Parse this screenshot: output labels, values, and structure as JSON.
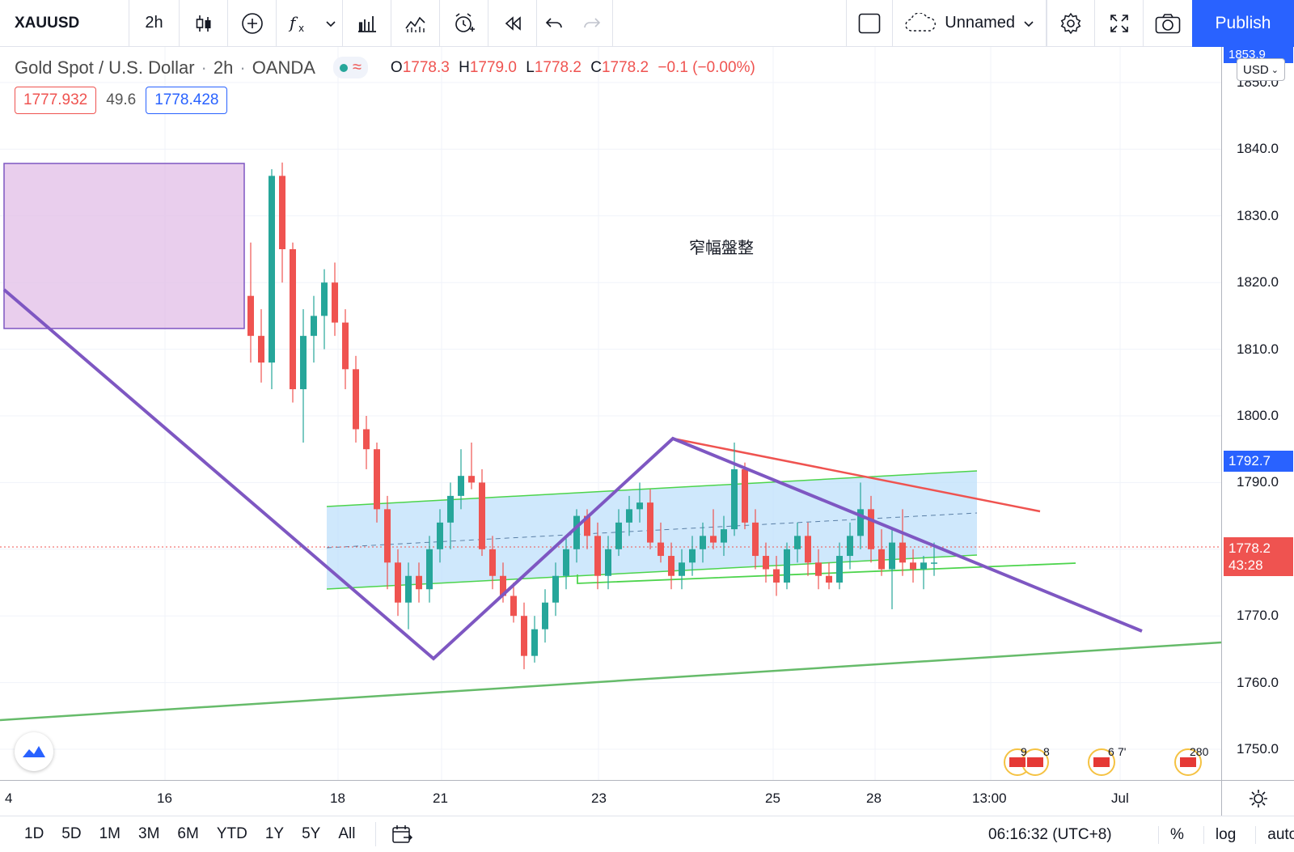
{
  "toolbar": {
    "symbol": "XAUUSD",
    "interval": "2h",
    "layout_name": "Unnamed",
    "publish_label": "Publish",
    "icons": [
      "candles-icon",
      "add-indicator-icon",
      "fx-icon",
      "chevron-down-icon",
      "bar-chart-icon",
      "compare-icon",
      "alert-icon",
      "replay-icon",
      "undo-icon",
      "redo-icon",
      "layout-icon",
      "settings-icon",
      "fullscreen-icon",
      "camera-icon"
    ]
  },
  "legend": {
    "title": "Gold Spot / U.S. Dollar",
    "interval": "2h",
    "source": "OANDA",
    "wave": "≈",
    "open_label": "O",
    "open": "1778.3",
    "high_label": "H",
    "high": "1779.0",
    "low_label": "L",
    "low": "1778.2",
    "close_label": "C",
    "close": "1778.2",
    "change": "−0.1 (−0.00%)",
    "bid": "1777.932",
    "spread": "49.6",
    "ask": "1778.428"
  },
  "annotation": "窄幅盤整",
  "price_scale": {
    "currency": "USD",
    "ticks": [
      "1850.0",
      "1840.0",
      "1830.0",
      "1820.0",
      "1810.0",
      "1800.0",
      "1790.0",
      "1780.0",
      "1770.0",
      "1760.0",
      "1750.0"
    ],
    "top_tag": "1853.9",
    "line_tag": "1792.7",
    "last_price": "1778.2",
    "countdown": "43:28",
    "colors": {
      "top_tag": "#2962ff",
      "line_tag": "#2962ff",
      "last_price": "#ef5350"
    }
  },
  "time_axis": {
    "labels": [
      "4",
      "16",
      "18",
      "21",
      "23",
      "25",
      "28",
      "13:00",
      "Jul"
    ]
  },
  "bottom_bar": {
    "ranges": [
      "1D",
      "5D",
      "1M",
      "3M",
      "6M",
      "YTD",
      "1Y",
      "5Y",
      "All"
    ],
    "clock": "06:16:32 (UTC+8)",
    "percent": "%",
    "log": "log",
    "auto": "auto"
  },
  "events": [
    "9",
    "8",
    "6",
    "7'",
    "280"
  ],
  "chart_data": {
    "type": "candlestick",
    "symbol": "XAUUSD",
    "ylim": [
      1745,
      1855
    ],
    "candles": [
      [
        1818,
        1826,
        1808,
        1812
      ],
      [
        1812,
        1816,
        1805,
        1808
      ],
      [
        1808,
        1837,
        1804,
        1836
      ],
      [
        1836,
        1838,
        1820,
        1825
      ],
      [
        1825,
        1826,
        1802,
        1804
      ],
      [
        1804,
        1816,
        1796,
        1812
      ],
      [
        1812,
        1818,
        1808,
        1815
      ],
      [
        1815,
        1822,
        1810,
        1820
      ],
      [
        1820,
        1823,
        1812,
        1814
      ],
      [
        1814,
        1816,
        1804,
        1807
      ],
      [
        1807,
        1809,
        1796,
        1798
      ],
      [
        1798,
        1800,
        1792,
        1795
      ],
      [
        1795,
        1796,
        1784,
        1786
      ],
      [
        1786,
        1788,
        1774,
        1778
      ],
      [
        1778,
        1780,
        1770,
        1772
      ],
      [
        1772,
        1778,
        1768,
        1776
      ],
      [
        1776,
        1778,
        1772,
        1774
      ],
      [
        1774,
        1782,
        1772,
        1780
      ],
      [
        1780,
        1786,
        1778,
        1784
      ],
      [
        1784,
        1790,
        1780,
        1788
      ],
      [
        1788,
        1795,
        1786,
        1791
      ],
      [
        1791,
        1796,
        1789,
        1790
      ],
      [
        1790,
        1792,
        1779,
        1780
      ],
      [
        1780,
        1782,
        1774,
        1776
      ],
      [
        1776,
        1778,
        1772,
        1773
      ],
      [
        1773,
        1775,
        1769,
        1770
      ],
      [
        1770,
        1772,
        1762,
        1764
      ],
      [
        1764,
        1770,
        1763,
        1768
      ],
      [
        1768,
        1774,
        1766,
        1772
      ],
      [
        1772,
        1778,
        1770,
        1776
      ],
      [
        1776,
        1782,
        1774,
        1780
      ],
      [
        1780,
        1786,
        1778,
        1785
      ],
      [
        1785,
        1786,
        1780,
        1782
      ],
      [
        1782,
        1784,
        1774,
        1776
      ],
      [
        1776,
        1782,
        1774,
        1780
      ],
      [
        1780,
        1786,
        1779,
        1784
      ],
      [
        1784,
        1788,
        1782,
        1786
      ],
      [
        1786,
        1790,
        1784,
        1787
      ],
      [
        1787,
        1789,
        1780,
        1781
      ],
      [
        1781,
        1784,
        1778,
        1779
      ],
      [
        1779,
        1781,
        1774,
        1776
      ],
      [
        1776,
        1780,
        1774,
        1778
      ],
      [
        1778,
        1782,
        1776,
        1780
      ],
      [
        1780,
        1784,
        1778,
        1782
      ],
      [
        1782,
        1786,
        1780,
        1781
      ],
      [
        1781,
        1785,
        1779,
        1783
      ],
      [
        1783,
        1796,
        1782,
        1792
      ],
      [
        1792,
        1793,
        1783,
        1784
      ],
      [
        1784,
        1786,
        1777,
        1779
      ],
      [
        1779,
        1781,
        1775,
        1777
      ],
      [
        1777,
        1779,
        1773,
        1775
      ],
      [
        1775,
        1781,
        1774,
        1780
      ],
      [
        1780,
        1784,
        1778,
        1782
      ],
      [
        1782,
        1784,
        1776,
        1778
      ],
      [
        1778,
        1780,
        1774,
        1776
      ],
      [
        1776,
        1778,
        1774,
        1775
      ],
      [
        1775,
        1781,
        1774,
        1779
      ],
      [
        1779,
        1784,
        1777,
        1782
      ],
      [
        1782,
        1790,
        1780,
        1786
      ],
      [
        1786,
        1788,
        1778,
        1780
      ],
      [
        1780,
        1783,
        1776,
        1777
      ],
      [
        1777,
        1783,
        1771,
        1781
      ],
      [
        1781,
        1786,
        1776,
        1778
      ],
      [
        1778,
        1780,
        1775,
        1777
      ],
      [
        1777,
        1779,
        1774,
        1778
      ],
      [
        1778,
        1781,
        1776,
        1778
      ]
    ],
    "lines": [
      {
        "name": "wave",
        "color": "#7e57c2"
      },
      {
        "name": "channel",
        "color": "#4cd44c"
      },
      {
        "name": "resistance",
        "color": "#ef5350"
      },
      {
        "name": "long-support",
        "color": "#66bb6a"
      }
    ]
  }
}
